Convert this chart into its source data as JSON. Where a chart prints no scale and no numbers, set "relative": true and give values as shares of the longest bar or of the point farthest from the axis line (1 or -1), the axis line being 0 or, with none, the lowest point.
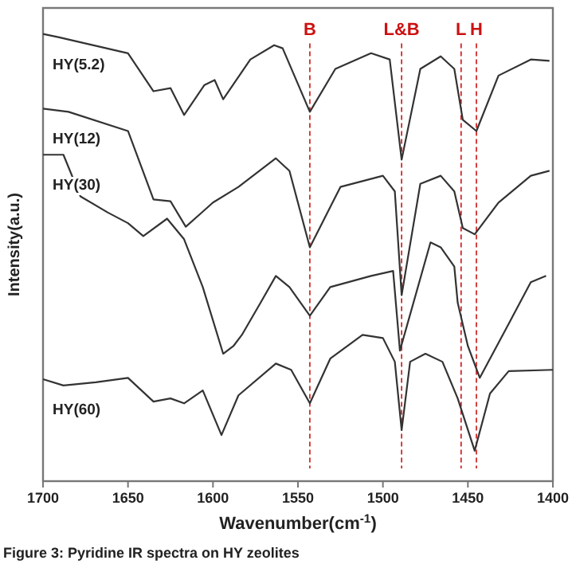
{
  "chart_data": {
    "type": "line",
    "relative": true,
    "xlabel": "Wavenumber(cm$^{-1}$)",
    "ylabel": "Intensity(a.u.)",
    "xlim": [
      1700,
      1400
    ],
    "xticks": [
      1700,
      1650,
      1600,
      1550,
      1500,
      1450,
      1400
    ],
    "grid": false,
    "marker": "none",
    "line_style": "solid",
    "series": [
      {
        "name": "HY(5.2)",
        "color": "#333333",
        "x": [
          1700,
          1691,
          1650,
          1635,
          1625,
          1617,
          1605,
          1599,
          1594,
          1578,
          1564,
          1559,
          1543,
          1528,
          1507,
          1496,
          1489,
          1478,
          1466,
          1458,
          1453,
          1445,
          1432,
          1413,
          1402
        ],
        "values": [
          1,
          0.993,
          0.957,
          0.872,
          0.879,
          0.819,
          0.886,
          0.897,
          0.854,
          0.943,
          0.975,
          0.968,
          0.826,
          0.922,
          0.957,
          0.943,
          0.719,
          0.922,
          0.95,
          0.922,
          0.808,
          0.783,
          0.907,
          0.943,
          0.94
        ]
      },
      {
        "name": "HY(12)",
        "color": "#333333",
        "x": [
          1700,
          1685,
          1650,
          1635,
          1625,
          1616,
          1600,
          1585,
          1563,
          1555,
          1543,
          1525,
          1500,
          1493,
          1489,
          1478,
          1466,
          1458,
          1453,
          1446,
          1432,
          1413,
          1402
        ],
        "values": [
          0.833,
          0.826,
          0.783,
          0.63,
          0.626,
          0.569,
          0.623,
          0.658,
          0.722,
          0.694,
          0.523,
          0.658,
          0.683,
          0.648,
          0.416,
          0.665,
          0.683,
          0.648,
          0.566,
          0.552,
          0.623,
          0.683,
          0.694
        ]
      },
      {
        "name": "HY(30)",
        "color": "#333333",
        "x": [
          1700,
          1688,
          1678,
          1662,
          1650,
          1641,
          1627,
          1617,
          1606,
          1594,
          1588,
          1583,
          1572,
          1563,
          1555,
          1543,
          1531,
          1507,
          1494,
          1490,
          1472,
          1466,
          1458,
          1456,
          1450,
          1443,
          1426,
          1413,
          1404
        ],
        "values": [
          0.73,
          0.73,
          0.637,
          0.601,
          0.577,
          0.548,
          0.587,
          0.541,
          0.434,
          0.285,
          0.302,
          0.327,
          0.399,
          0.459,
          0.434,
          0.37,
          0.434,
          0.459,
          0.47,
          0.292,
          0.534,
          0.523,
          0.48,
          0.399,
          0.302,
          0.231,
          0.352,
          0.445,
          0.459
        ]
      },
      {
        "name": "HY(60)",
        "color": "#333333",
        "x": [
          1700,
          1688,
          1669,
          1650,
          1635,
          1625,
          1617,
          1606,
          1595,
          1585,
          1563,
          1554,
          1543,
          1531,
          1512,
          1500,
          1493,
          1489,
          1484,
          1475,
          1465,
          1456,
          1446,
          1437,
          1426,
          1400
        ],
        "values": [
          0.228,
          0.214,
          0.221,
          0.231,
          0.178,
          0.185,
          0.174,
          0.203,
          0.103,
          0.192,
          0.263,
          0.249,
          0.174,
          0.274,
          0.327,
          0.32,
          0.267,
          0.114,
          0.267,
          0.285,
          0.267,
          0.185,
          0.068,
          0.196,
          0.246,
          0.249
        ]
      }
    ],
    "ref_lines": [
      {
        "axis": "x",
        "value": 1543,
        "label": "B",
        "color": "#cc1111",
        "line_style": "dashed"
      },
      {
        "axis": "x",
        "value": 1489,
        "label": "L&B",
        "color": "#cc1111",
        "line_style": "dashed"
      },
      {
        "axis": "x",
        "value": 1454,
        "label": "L",
        "color": "#cc1111",
        "line_style": "dashed"
      },
      {
        "axis": "x",
        "value": 1445,
        "label": "H",
        "color": "#cc1111",
        "line_style": "dashed"
      }
    ],
    "annotations": [
      "Figure 3: Pyridine IR spectra on HY zeolites"
    ]
  }
}
